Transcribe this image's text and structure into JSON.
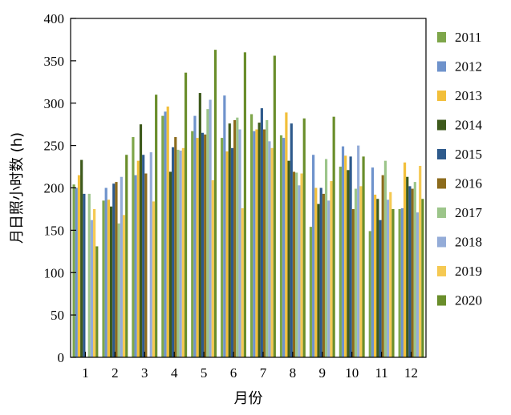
{
  "chart_data": {
    "type": "bar",
    "title": "",
    "xlabel": "月份",
    "ylabel": "月日照小时数 (h)",
    "ylim": [
      0,
      400
    ],
    "yticks": [
      0,
      50,
      100,
      150,
      200,
      250,
      300,
      350,
      400
    ],
    "grid": false,
    "legend_position": "right",
    "categories": [
      "1",
      "2",
      "3",
      "4",
      "5",
      "6",
      "7",
      "8",
      "9",
      "10",
      "11",
      "12"
    ],
    "series": [
      {
        "name": "2011",
        "color": "#7ea64a",
        "values": [
          204,
          185,
          260,
          285,
          267,
          259,
          287,
          262,
          154,
          225,
          149,
          175
        ]
      },
      {
        "name": "2012",
        "color": "#6f93cc",
        "values": [
          200,
          200,
          215,
          290,
          285,
          309,
          267,
          259,
          239,
          249,
          224,
          176
        ]
      },
      {
        "name": "2013",
        "color": "#f2bf3a",
        "values": [
          215,
          186,
          232,
          296,
          259,
          243,
          269,
          289,
          200,
          238,
          192,
          230
        ]
      },
      {
        "name": "2014",
        "color": "#3e5a1c",
        "values": [
          233,
          178,
          275,
          219,
          312,
          276,
          277,
          232,
          181,
          221,
          187,
          213
        ]
      },
      {
        "name": "2015",
        "color": "#2e5a8c",
        "values": [
          193,
          205,
          239,
          248,
          265,
          247,
          294,
          276,
          200,
          237,
          162,
          202
        ]
      },
      {
        "name": "2016",
        "color": "#8c6b1c",
        "values": [
          0,
          207,
          217,
          260,
          263,
          280,
          269,
          219,
          193,
          175,
          215,
          199
        ]
      },
      {
        "name": "2017",
        "color": "#9cc58a",
        "values": [
          193,
          158,
          0,
          245,
          293,
          283,
          280,
          218,
          234,
          199,
          232,
          207
        ]
      },
      {
        "name": "2018",
        "color": "#94acd8",
        "values": [
          162,
          213,
          242,
          244,
          304,
          269,
          255,
          203,
          185,
          250,
          186,
          171
        ]
      },
      {
        "name": "2019",
        "color": "#f5c953",
        "values": [
          175,
          168,
          184,
          247,
          209,
          176,
          247,
          217,
          208,
          202,
          195,
          226
        ]
      },
      {
        "name": "2020",
        "color": "#6a8e2b",
        "values": [
          131,
          239,
          310,
          336,
          363,
          360,
          356,
          282,
          284,
          237,
          175,
          187
        ]
      }
    ]
  }
}
